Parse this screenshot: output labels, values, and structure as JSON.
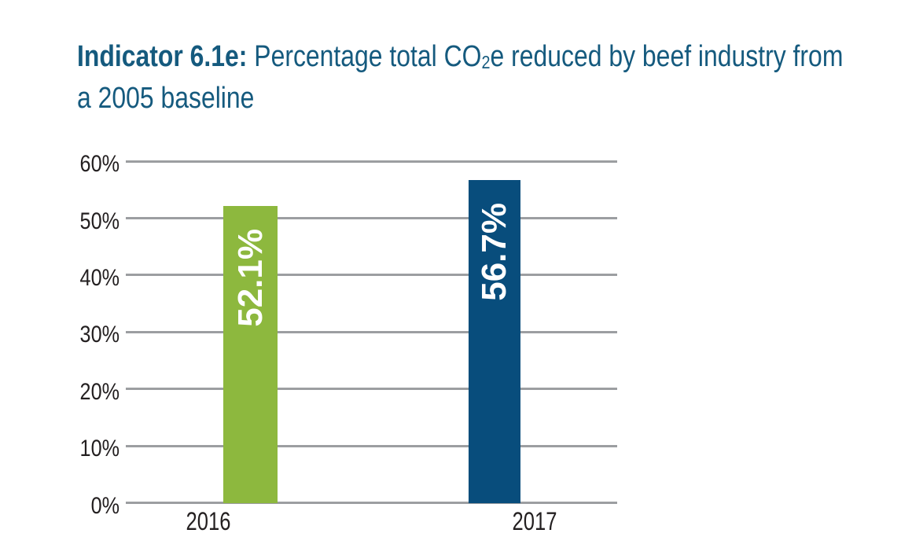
{
  "page": {
    "background": "#ffffff"
  },
  "header": {
    "title_bold": "Indicator 6.1e:",
    "title_line1_rest": " Percentage total CO",
    "title_subscript": "2",
    "title_line1_tail": "e reduced by beef industry from",
    "title_line2": "a 2005 baseline",
    "title_color": "#155a7e"
  },
  "chart_data": {
    "type": "bar",
    "title": "Indicator 6.1e: Percentage total CO2e reduced by beef industry from a 2005 baseline",
    "categories": [
      "2016",
      "2017"
    ],
    "values": [
      52.1,
      56.7
    ],
    "bar_labels": [
      "52.1%",
      "56.7%"
    ],
    "bar_colors": [
      "#8db83e",
      "#084d7c"
    ],
    "bar_label_color": "#ffffff",
    "bar_label_rotation": "90deg counterclockwise, reads bottom to top",
    "xlabel": "",
    "ylabel": "",
    "ylim": [
      0,
      60
    ],
    "ytick_values": [
      0,
      10,
      20,
      30,
      40,
      50,
      60
    ],
    "ytick_labels": [
      "0%",
      "10%",
      "20%",
      "30%",
      "40%",
      "50%",
      "60%"
    ],
    "grid": true,
    "gridline_color": "#9c9ea1",
    "axis_text_color": "#231f20",
    "legend": "none"
  }
}
